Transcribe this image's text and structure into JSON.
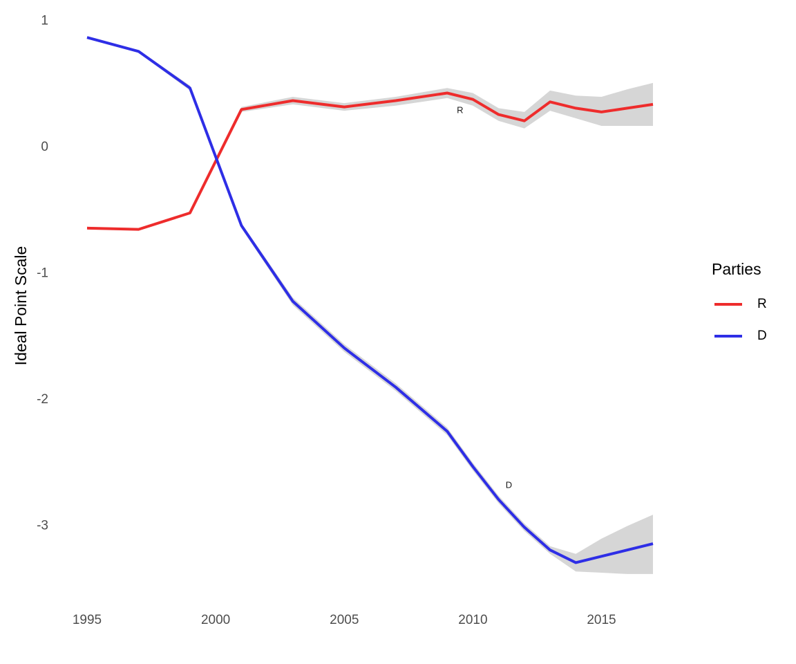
{
  "chart_data": {
    "type": "line",
    "title": "",
    "xlabel": "",
    "ylabel": "Ideal Point Scale",
    "xlim": [
      1995,
      2017
    ],
    "ylim": [
      -3.5,
      1
    ],
    "x_ticks": [
      1995,
      2000,
      2005,
      2010,
      2015
    ],
    "y_ticks": [
      1,
      0,
      -1,
      -2,
      -3
    ],
    "grid": false,
    "legend": {
      "title": "Parties",
      "position": "right",
      "entries": [
        "R",
        "D"
      ]
    },
    "series": [
      {
        "name": "R",
        "color": "#ee2c2c",
        "x": [
          1995,
          1997,
          1999,
          2001,
          2003,
          2005,
          2007,
          2009,
          2010,
          2011,
          2012,
          2013,
          2014,
          2015,
          2016,
          2017
        ],
        "values": [
          -0.64,
          -0.65,
          -0.52,
          0.3,
          0.37,
          0.32,
          0.37,
          0.43,
          0.38,
          0.26,
          0.21,
          0.36,
          0.31,
          0.28,
          0.31,
          0.34
        ],
        "ci_lower": [
          -0.65,
          -0.66,
          -0.53,
          0.28,
          0.34,
          0.29,
          0.33,
          0.39,
          0.33,
          0.21,
          0.15,
          0.29,
          0.23,
          0.17,
          0.17,
          0.17
        ],
        "ci_upper": [
          -0.63,
          -0.64,
          -0.51,
          0.32,
          0.4,
          0.35,
          0.4,
          0.47,
          0.43,
          0.31,
          0.28,
          0.45,
          0.41,
          0.4,
          0.46,
          0.51
        ]
      },
      {
        "name": "D",
        "color": "#2e2ee6",
        "x": [
          1995,
          1997,
          1999,
          2001,
          2003,
          2005,
          2007,
          2009,
          2010,
          2011,
          2012,
          2013,
          2014,
          2015,
          2016,
          2017
        ],
        "values": [
          0.87,
          0.76,
          0.47,
          -0.62,
          -1.22,
          -1.59,
          -1.9,
          -2.25,
          -2.53,
          -2.79,
          -3.01,
          -3.19,
          -3.29,
          -3.24,
          -3.19,
          -3.14
        ],
        "ci_lower": [
          0.86,
          0.75,
          0.45,
          -0.64,
          -1.25,
          -1.62,
          -1.93,
          -2.28,
          -2.56,
          -2.82,
          -3.04,
          -3.22,
          -3.36,
          -3.37,
          -3.38,
          -3.38
        ],
        "ci_upper": [
          0.88,
          0.77,
          0.49,
          -0.6,
          -1.19,
          -1.56,
          -1.87,
          -2.22,
          -2.5,
          -2.76,
          -2.98,
          -3.16,
          -3.22,
          -3.1,
          -3.0,
          -2.91
        ]
      }
    ],
    "ribbon_color": "#d6d6d6",
    "annotations": [
      {
        "text": "R",
        "x": 2009.5,
        "y": 0.29
      },
      {
        "text": "D",
        "x": 2011.4,
        "y": -2.68
      }
    ]
  }
}
